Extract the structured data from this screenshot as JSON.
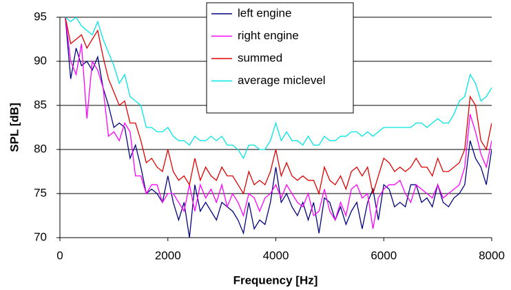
{
  "chart_data": {
    "type": "line",
    "xlabel": "Frequency [Hz]",
    "ylabel": "SPL [dB]",
    "xlim": [
      0,
      8000
    ],
    "xticks": [
      0,
      2000,
      4000,
      6000,
      8000
    ],
    "ylim": [
      70,
      95
    ],
    "yticks": [
      70,
      75,
      80,
      85,
      90,
      95
    ],
    "grid": true,
    "legend": "top",
    "x": [
      100,
      200,
      300,
      400,
      500,
      600,
      700,
      800,
      900,
      1000,
      1100,
      1200,
      1300,
      1400,
      1500,
      1600,
      1700,
      1800,
      1900,
      2000,
      2100,
      2200,
      2300,
      2400,
      2500,
      2600,
      2700,
      2800,
      2900,
      3000,
      3100,
      3200,
      3300,
      3400,
      3500,
      3600,
      3700,
      3800,
      3900,
      4000,
      4100,
      4200,
      4300,
      4400,
      4500,
      4600,
      4700,
      4800,
      4900,
      5000,
      5100,
      5200,
      5300,
      5400,
      5500,
      5600,
      5700,
      5800,
      5900,
      6000,
      6100,
      6200,
      6300,
      6400,
      6500,
      6600,
      6700,
      6800,
      6900,
      7000,
      7100,
      7200,
      7300,
      7400,
      7500,
      7600,
      7700,
      7800,
      7900,
      8000
    ],
    "series": [
      {
        "name": "left engine",
        "color": "#000080",
        "values": [
          95,
          88,
          91.5,
          89.5,
          90,
          89,
          90.5,
          87,
          85,
          82.5,
          83,
          82.5,
          79,
          80.5,
          78,
          75,
          75.5,
          75,
          74,
          77,
          74,
          72,
          74,
          70,
          76,
          73,
          74,
          73,
          72,
          74,
          73.5,
          73,
          72,
          70.5,
          74,
          71,
          72,
          71.5,
          74,
          78,
          74,
          75,
          73.5,
          72.5,
          74,
          72,
          74,
          70.5,
          74.5,
          74,
          72,
          73.5,
          71.5,
          73,
          74,
          71,
          74,
          75.5,
          72,
          76,
          75.5,
          73.5,
          74,
          73.5,
          76,
          76,
          74,
          74.5,
          73.5,
          76,
          74,
          73.5,
          74.5,
          75,
          76,
          81,
          79,
          78,
          76,
          80
        ]
      },
      {
        "name": "right engine",
        "color": "#ff00ff",
        "values": [
          95,
          90,
          88.5,
          92,
          83.5,
          90,
          89,
          87,
          81.5,
          82,
          81,
          83,
          82,
          77,
          77,
          75,
          76,
          76,
          74,
          75,
          75,
          74,
          73,
          76,
          73,
          76,
          74.5,
          75.5,
          74,
          76,
          73.5,
          75,
          74,
          72.5,
          75,
          74.5,
          73,
          74.5,
          75,
          76,
          74.5,
          76,
          75,
          74,
          73.5,
          75,
          72.5,
          73,
          75.5,
          73,
          72,
          74,
          72.5,
          75.5,
          76,
          74.5,
          75,
          71,
          74.5,
          75.5,
          76,
          76,
          76.5,
          75,
          74,
          76,
          75.5,
          75,
          74.5,
          76,
          74.5,
          75,
          75.5,
          76,
          78,
          84,
          82,
          79.5,
          78,
          81
        ]
      },
      {
        "name": "summed",
        "color": "#e00000",
        "values": [
          95,
          92,
          92.5,
          93,
          91.5,
          92.5,
          93.5,
          90.5,
          88,
          86.5,
          85,
          85.5,
          83,
          83,
          81,
          78.5,
          79,
          78,
          77.5,
          80,
          77.5,
          76.5,
          77,
          76,
          79,
          76.5,
          78,
          77,
          76.5,
          78,
          77,
          77,
          76,
          75,
          77.5,
          76,
          76.5,
          76,
          77.5,
          80,
          77,
          78.5,
          77,
          76.5,
          77,
          76.5,
          76.5,
          75,
          78,
          76.5,
          76,
          77,
          75.5,
          77.5,
          78,
          77,
          78,
          75,
          77,
          79,
          78.5,
          77.5,
          78,
          77.5,
          78,
          79,
          78,
          78,
          77,
          79,
          77.5,
          77.5,
          78,
          78.5,
          80,
          86,
          85,
          81,
          80,
          83
        ]
      },
      {
        "name": "average miclevel",
        "color": "#00e5e5",
        "values": [
          95,
          94.5,
          95,
          94,
          93.5,
          93,
          94.5,
          92.5,
          91,
          89.5,
          87.5,
          88.5,
          86,
          85.5,
          85,
          82.5,
          82.5,
          82,
          82,
          82.5,
          81.5,
          81,
          81,
          80.5,
          81.5,
          81,
          81,
          81.5,
          81,
          81.5,
          80.5,
          80.5,
          80,
          79,
          80.5,
          80.5,
          80,
          80,
          81,
          83,
          81,
          82,
          81,
          81,
          80.5,
          81.5,
          80.5,
          80.5,
          81.5,
          81,
          81,
          81.5,
          81.5,
          82,
          82,
          81.5,
          82,
          81.5,
          82,
          82.5,
          82.5,
          82.5,
          82.5,
          82.5,
          82.5,
          83,
          83,
          82.5,
          83,
          83.5,
          83,
          83,
          84,
          85.5,
          86,
          88.5,
          87.5,
          85.5,
          86,
          87
        ]
      }
    ]
  }
}
